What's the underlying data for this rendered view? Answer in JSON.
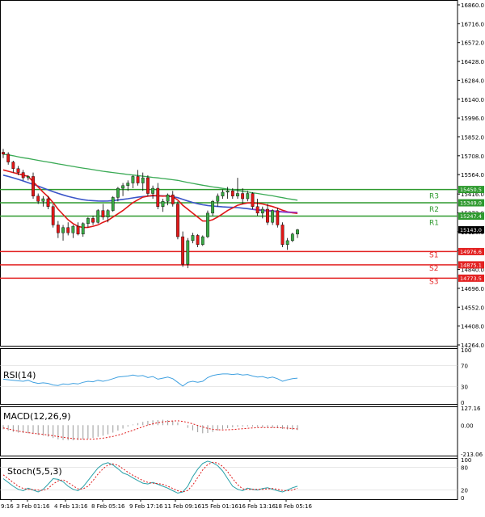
{
  "colors": {
    "background": "#ffffff",
    "frame": "#000000",
    "bull": "#3aa845",
    "bear": "#e11717",
    "resistance": "#2f9a2f",
    "support": "#e32222",
    "ma_blue": "#3a55c8",
    "ma_red": "#e01818",
    "ma_green": "#3aaa55",
    "ma_purple": "#a03ac8",
    "indicator_blue": "#3fa0e0",
    "indicator_red": "#e01818",
    "indicator_teal": "#28a0a8",
    "price_tag": "#000000"
  },
  "chart_data": {
    "type": "candlestick",
    "symbol_scale": "price",
    "price_axis": {
      "ticks": [
        "16860.0",
        "16716.0",
        "16572.0",
        "16428.0",
        "16284.0",
        "16140.0",
        "15996.0",
        "15852.0",
        "15708.0",
        "15564.0",
        "15416.0",
        "15272.0",
        "15128.0",
        "14984.0",
        "14840.0",
        "14696.0",
        "14552.0",
        "14408.0",
        "14264.0"
      ],
      "range": [
        14230,
        16900
      ]
    },
    "time_axis": {
      "ticks": [
        "9:16",
        "3 Feb 01:16",
        "4 Feb 13:16",
        "8 Feb 05:16",
        "9 Feb 17:16",
        "11 Feb 09:16",
        "15 Feb 01:16",
        "16 Feb 13:16",
        "18 Feb 05:16"
      ]
    },
    "candles": [
      [
        15735,
        15760,
        15690,
        15720
      ],
      [
        15720,
        15735,
        15640,
        15660
      ],
      [
        15660,
        15670,
        15580,
        15610
      ],
      [
        15610,
        15630,
        15560,
        15580
      ],
      [
        15580,
        15600,
        15520,
        15540
      ],
      [
        15540,
        15560,
        15520,
        15550
      ],
      [
        15550,
        15580,
        15380,
        15400
      ],
      [
        15400,
        15420,
        15340,
        15360
      ],
      [
        15360,
        15400,
        15320,
        15380
      ],
      [
        15380,
        15400,
        15300,
        15320
      ],
      [
        15320,
        15340,
        15160,
        15180
      ],
      [
        15180,
        15210,
        15080,
        15120
      ],
      [
        15120,
        15180,
        15060,
        15160
      ],
      [
        15160,
        15200,
        15100,
        15120
      ],
      [
        15120,
        15180,
        15080,
        15170
      ],
      [
        15170,
        15200,
        15100,
        15110
      ],
      [
        15110,
        15200,
        15090,
        15190
      ],
      [
        15190,
        15240,
        15160,
        15230
      ],
      [
        15230,
        15250,
        15180,
        15200
      ],
      [
        15200,
        15300,
        15190,
        15290
      ],
      [
        15290,
        15340,
        15220,
        15240
      ],
      [
        15240,
        15300,
        15200,
        15290
      ],
      [
        15290,
        15400,
        15280,
        15390
      ],
      [
        15390,
        15470,
        15360,
        15460
      ],
      [
        15460,
        15500,
        15400,
        15480
      ],
      [
        15480,
        15520,
        15440,
        15500
      ],
      [
        15500,
        15560,
        15460,
        15550
      ],
      [
        15550,
        15600,
        15480,
        15500
      ],
      [
        15500,
        15580,
        15440,
        15540
      ],
      [
        15540,
        15560,
        15400,
        15420
      ],
      [
        15420,
        15480,
        15380,
        15460
      ],
      [
        15460,
        15500,
        15300,
        15320
      ],
      [
        15320,
        15380,
        15280,
        15360
      ],
      [
        15360,
        15420,
        15330,
        15410
      ],
      [
        15410,
        15440,
        15320,
        15340
      ],
      [
        15340,
        15360,
        15070,
        15090
      ],
      [
        15090,
        15130,
        14860,
        14880
      ],
      [
        14880,
        15080,
        14850,
        15060
      ],
      [
        15060,
        15120,
        15040,
        15100
      ],
      [
        15100,
        15110,
        15010,
        15030
      ],
      [
        15030,
        15100,
        15020,
        15090
      ],
      [
        15090,
        15290,
        15080,
        15270
      ],
      [
        15270,
        15370,
        15250,
        15360
      ],
      [
        15360,
        15420,
        15320,
        15400
      ],
      [
        15400,
        15450,
        15380,
        15430
      ],
      [
        15430,
        15470,
        15380,
        15440
      ],
      [
        15440,
        15460,
        15380,
        15400
      ],
      [
        15400,
        15540,
        15380,
        15420
      ],
      [
        15420,
        15460,
        15340,
        15380
      ],
      [
        15380,
        15440,
        15360,
        15420
      ],
      [
        15420,
        15430,
        15300,
        15320
      ],
      [
        15320,
        15380,
        15250,
        15270
      ],
      [
        15270,
        15320,
        15230,
        15300
      ],
      [
        15300,
        15340,
        15180,
        15200
      ],
      [
        15200,
        15300,
        15180,
        15290
      ],
      [
        15290,
        15310,
        15160,
        15180
      ],
      [
        15180,
        15200,
        15010,
        15030
      ],
      [
        15030,
        15080,
        14990,
        15060
      ],
      [
        15060,
        15120,
        15050,
        15110
      ],
      [
        15110,
        15150,
        15080,
        15143
      ]
    ],
    "moving_averages": [
      {
        "color": "green",
        "values": [
          15720,
          15715,
          15708,
          15700,
          15693,
          15687,
          15680,
          15673,
          15666,
          15660,
          15653,
          15646,
          15640,
          15633,
          15627,
          15620,
          15614,
          15608,
          15602,
          15596,
          15590,
          15585,
          15580,
          15575,
          15570,
          15565,
          15561,
          15557,
          15552,
          15548,
          15543,
          15539,
          15534,
          15530,
          15525,
          15520,
          15512,
          15504,
          15497,
          15490,
          15483,
          15477,
          15470,
          15465,
          15459,
          15454,
          15448,
          15443,
          15437,
          15432,
          15426,
          15420,
          15414,
          15408,
          15402,
          15395,
          15388,
          15381,
          15375,
          15369
        ]
      },
      {
        "color": "blue",
        "values": [
          15560,
          15550,
          15540,
          15528,
          15516,
          15503,
          15490,
          15476,
          15462,
          15448,
          15434,
          15421,
          15409,
          15398,
          15389,
          15380,
          15373,
          15368,
          15365,
          15363,
          15362,
          15363,
          15366,
          15370,
          15375,
          15380,
          15386,
          15392,
          15397,
          15400,
          15402,
          15403,
          15402,
          15399,
          15395,
          15388,
          15375,
          15363,
          15352,
          15342,
          15334,
          15328,
          15324,
          15321,
          15318,
          15316,
          15314,
          15312,
          15308,
          15304,
          15299,
          15294,
          15290,
          15287,
          15284,
          15282,
          15279,
          15276,
          15274,
          15272
        ]
      },
      {
        "color": "red",
        "values": [
          15600,
          15590,
          15580,
          15570,
          15560,
          15550,
          15510,
          15470,
          15430,
          15395,
          15350,
          15300,
          15260,
          15220,
          15190,
          15170,
          15160,
          15162,
          15170,
          15180,
          15200,
          15215,
          15240,
          15265,
          15290,
          15320,
          15350,
          15372,
          15392,
          15400,
          15406,
          15402,
          15400,
          15402,
          15395,
          15370,
          15330,
          15300,
          15270,
          15240,
          15210,
          15210,
          15220,
          15240,
          15265,
          15290,
          15310,
          15330,
          15340,
          15348,
          15348,
          15345,
          15340,
          15330,
          15320,
          15308,
          15292,
          15280,
          15272,
          15268
        ]
      },
      {
        "color": "purple",
        "values": [
          null,
          null,
          null,
          null,
          null,
          null,
          null,
          null,
          null,
          null,
          null,
          null,
          null,
          null,
          null,
          null,
          null,
          null,
          null,
          null,
          null,
          null,
          null,
          null,
          null,
          null,
          null,
          null,
          null,
          null,
          null,
          null,
          null,
          null,
          null,
          null,
          null,
          null,
          null,
          null,
          null,
          null,
          null,
          null,
          null,
          null,
          null,
          null,
          null,
          null,
          15300,
          15297,
          15293,
          15290,
          15287,
          15284,
          15281,
          15279,
          15277,
          15276
        ]
      }
    ],
    "levels": [
      {
        "name": "R3",
        "value": 15450.5,
        "tag": "15450.5",
        "kind": "resistance"
      },
      {
        "name": "R2",
        "value": 15349.0,
        "tag": "15349.0",
        "kind": "resistance"
      },
      {
        "name": "R1",
        "value": 15247.4,
        "tag": "15247.4",
        "kind": "resistance"
      },
      {
        "name": "S1",
        "value": 14976.6,
        "tag": "14976.6",
        "kind": "support"
      },
      {
        "name": "S2",
        "value": 14875.1,
        "tag": "14875.1",
        "kind": "support"
      },
      {
        "name": "S3",
        "value": 14773.5,
        "tag": "14773.5",
        "kind": "support"
      }
    ],
    "current_price": {
      "value": 15143.0,
      "tag": "15143.0"
    },
    "indicators": [
      {
        "name": "RSI(14)",
        "range": [
          0,
          100
        ],
        "ticks": [
          "100",
          "70",
          "30",
          "0"
        ],
        "values": [
          44,
          43,
          42,
          41,
          40,
          42,
          38,
          36,
          37,
          36,
          33,
          32,
          35,
          34,
          36,
          35,
          38,
          40,
          39,
          42,
          40,
          42,
          45,
          48,
          49,
          50,
          52,
          50,
          51,
          47,
          49,
          44,
          46,
          48,
          45,
          38,
          31,
          38,
          40,
          38,
          40,
          47,
          51,
          53,
          54,
          54,
          53,
          54,
          52,
          53,
          50,
          48,
          49,
          46,
          48,
          45,
          40,
          43,
          45,
          46
        ]
      },
      {
        "name": "MACD(12,26,9)",
        "range": [
          -213.06,
          127.16
        ],
        "ticks": [
          "127.16",
          "0.00",
          "-213.06"
        ],
        "histogram": [
          -30,
          -40,
          -50,
          -55,
          -58,
          -60,
          -65,
          -72,
          -78,
          -85,
          -95,
          -105,
          -110,
          -112,
          -112,
          -110,
          -106,
          -100,
          -94,
          -86,
          -78,
          -68,
          -55,
          -40,
          -25,
          -10,
          5,
          15,
          24,
          32,
          36,
          38,
          40,
          38,
          33,
          20,
          0,
          -20,
          -38,
          -52,
          -60,
          -58,
          -50,
          -40,
          -30,
          -22,
          -16,
          -12,
          -10,
          -9,
          -10,
          -12,
          -15,
          -17,
          -19,
          -22,
          -28,
          -32,
          -34,
          -36
        ],
        "signal": [
          -20,
          -28,
          -36,
          -44,
          -50,
          -55,
          -60,
          -64,
          -68,
          -73,
          -78,
          -84,
          -90,
          -95,
          -99,
          -102,
          -104,
          -104,
          -103,
          -100,
          -96,
          -90,
          -83,
          -74,
          -63,
          -51,
          -38,
          -25,
          -12,
          0,
          10,
          18,
          24,
          28,
          31,
          32,
          28,
          20,
          10,
          -2,
          -14,
          -24,
          -31,
          -34,
          -35,
          -34,
          -32,
          -29,
          -26,
          -23,
          -20,
          -18,
          -17,
          -17,
          -17,
          -18,
          -20,
          -22,
          -25,
          -28
        ]
      },
      {
        "name": "Stoch(5,5,3)",
        "range": [
          0,
          100
        ],
        "ticks": [
          "100",
          "80",
          "20",
          "0"
        ],
        "k": [
          50,
          40,
          30,
          22,
          18,
          25,
          20,
          15,
          22,
          35,
          50,
          48,
          42,
          30,
          22,
          18,
          28,
          45,
          62,
          78,
          88,
          92,
          86,
          76,
          65,
          60,
          52,
          45,
          38,
          36,
          40,
          35,
          30,
          25,
          18,
          12,
          15,
          30,
          55,
          75,
          90,
          96,
          92,
          84,
          70,
          50,
          30,
          22,
          18,
          25,
          22,
          20,
          24,
          26,
          22,
          18,
          15,
          20,
          26,
          30
        ],
        "d": [
          60,
          50,
          40,
          30,
          24,
          22,
          21,
          20,
          19,
          24,
          36,
          44,
          47,
          40,
          31,
          23,
          23,
          30,
          45,
          62,
          76,
          86,
          89,
          85,
          76,
          67,
          59,
          52,
          45,
          40,
          38,
          37,
          35,
          30,
          24,
          18,
          15,
          19,
          33,
          53,
          73,
          87,
          93,
          91,
          82,
          68,
          50,
          34,
          23,
          22,
          22,
          22,
          22,
          23,
          24,
          22,
          19,
          18,
          20,
          25
        ]
      }
    ]
  }
}
